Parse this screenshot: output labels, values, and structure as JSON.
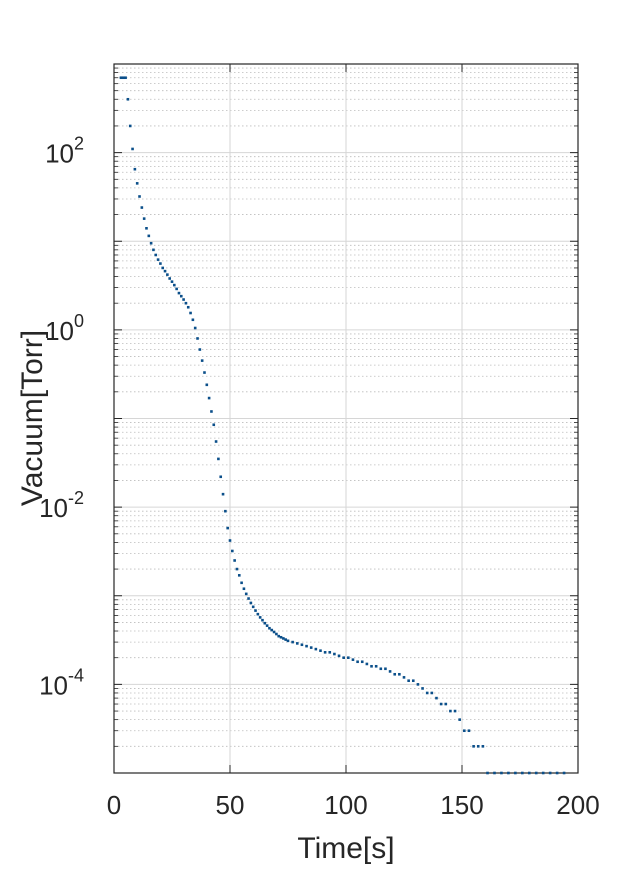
{
  "chart_data": {
    "type": "scatter",
    "xlabel": "Time[s]",
    "ylabel": "Vacuum[Torr]",
    "yscale": "log",
    "xlim": [
      0,
      200
    ],
    "ylim": [
      1e-05,
      1000
    ],
    "grid": true,
    "minor_grid": true,
    "x_ticks": [
      {
        "value": 0,
        "label": "0"
      },
      {
        "value": 50,
        "label": "50"
      },
      {
        "value": 100,
        "label": "100"
      },
      {
        "value": 150,
        "label": "150"
      },
      {
        "value": 200,
        "label": "200"
      }
    ],
    "y_ticks": [
      {
        "value": 100,
        "base": "10",
        "exp": "2"
      },
      {
        "value": 1,
        "base": "10",
        "exp": "0"
      },
      {
        "value": 0.01,
        "base": "10",
        "exp": "-2"
      },
      {
        "value": 0.0001,
        "base": "10",
        "exp": "-4"
      }
    ],
    "marker_color": "#0b4f8a",
    "series": [
      {
        "points": [
          [
            3,
            700
          ],
          [
            4,
            700
          ],
          [
            5,
            700
          ],
          [
            6,
            400
          ],
          [
            7,
            200
          ],
          [
            8,
            110
          ],
          [
            9,
            65
          ],
          [
            10,
            45
          ],
          [
            11,
            32
          ],
          [
            12,
            24
          ],
          [
            13,
            18
          ],
          [
            14,
            14
          ],
          [
            15,
            11.5
          ],
          [
            16,
            9.5
          ],
          [
            17,
            8
          ],
          [
            18,
            7
          ],
          [
            19,
            6.2
          ],
          [
            20,
            5.6
          ],
          [
            21,
            5
          ],
          [
            22,
            4.6
          ],
          [
            23,
            4.2
          ],
          [
            24,
            3.8
          ],
          [
            25,
            3.5
          ],
          [
            26,
            3.2
          ],
          [
            27,
            2.9
          ],
          [
            28,
            2.6
          ],
          [
            29,
            2.4
          ],
          [
            30,
            2.2
          ],
          [
            31,
            2
          ],
          [
            32,
            1.8
          ],
          [
            33,
            1.55
          ],
          [
            34,
            1.3
          ],
          [
            35,
            1.05
          ],
          [
            36,
            0.8
          ],
          [
            37,
            0.6
          ],
          [
            38,
            0.45
          ],
          [
            39,
            0.33
          ],
          [
            40,
            0.24
          ],
          [
            41,
            0.17
          ],
          [
            42,
            0.12
          ],
          [
            43,
            0.085
          ],
          [
            44,
            0.055
          ],
          [
            45,
            0.035
          ],
          [
            46,
            0.022
          ],
          [
            47,
            0.014
          ],
          [
            48,
            0.009
          ],
          [
            49,
            0.0058
          ],
          [
            50,
            0.0042
          ],
          [
            51,
            0.0032
          ],
          [
            52,
            0.0025
          ],
          [
            53,
            0.002
          ],
          [
            54,
            0.0017
          ],
          [
            55,
            0.0014
          ],
          [
            56,
            0.0012
          ],
          [
            57,
            0.00105
          ],
          [
            58,
            0.00093
          ],
          [
            59,
            0.00083
          ],
          [
            60,
            0.00075
          ],
          [
            61,
            0.00068
          ],
          [
            62,
            0.00062
          ],
          [
            63,
            0.00057
          ],
          [
            64,
            0.00053
          ],
          [
            65,
            0.00049
          ],
          [
            66,
            0.00046
          ],
          [
            67,
            0.00043
          ],
          [
            68,
            0.00041
          ],
          [
            69,
            0.00039
          ],
          [
            70,
            0.00037
          ],
          [
            71,
            0.00035
          ],
          [
            72,
            0.00034
          ],
          [
            73,
            0.00033
          ],
          [
            74,
            0.00032
          ],
          [
            75,
            0.00031
          ],
          [
            77,
            0.0003
          ],
          [
            79,
            0.00029
          ],
          [
            81,
            0.00028
          ],
          [
            83,
            0.00027
          ],
          [
            85,
            0.00026
          ],
          [
            87,
            0.00025
          ],
          [
            89,
            0.00024
          ],
          [
            91,
            0.00023
          ],
          [
            93,
            0.00023
          ],
          [
            95,
            0.00022
          ],
          [
            97,
            0.00021
          ],
          [
            99,
            0.0002
          ],
          [
            101,
            0.0002
          ],
          [
            103,
            0.00019
          ],
          [
            105,
            0.00018
          ],
          [
            107,
            0.00018
          ],
          [
            109,
            0.00017
          ],
          [
            111,
            0.00016
          ],
          [
            113,
            0.00016
          ],
          [
            115,
            0.00015
          ],
          [
            117,
            0.00015
          ],
          [
            119,
            0.00014
          ],
          [
            121,
            0.00013
          ],
          [
            123,
            0.00013
          ],
          [
            125,
            0.00012
          ],
          [
            127,
            0.00011
          ],
          [
            129,
            0.00011
          ],
          [
            131,
            0.0001
          ],
          [
            133,
            9e-05
          ],
          [
            135,
            8e-05
          ],
          [
            137,
            8e-05
          ],
          [
            139,
            7e-05
          ],
          [
            141,
            6e-05
          ],
          [
            143,
            6e-05
          ],
          [
            145,
            5e-05
          ],
          [
            147,
            5e-05
          ],
          [
            149,
            4e-05
          ],
          [
            151,
            3e-05
          ],
          [
            153,
            3e-05
          ],
          [
            155,
            2e-05
          ],
          [
            157,
            2e-05
          ],
          [
            159,
            2e-05
          ],
          [
            161,
            1e-05
          ],
          [
            164,
            1e-05
          ],
          [
            167,
            1e-05
          ],
          [
            170,
            1e-05
          ],
          [
            173,
            1e-05
          ],
          [
            176,
            1e-05
          ],
          [
            179,
            1e-05
          ],
          [
            182,
            1e-05
          ],
          [
            185,
            1e-05
          ],
          [
            188,
            1e-05
          ],
          [
            191,
            1e-05
          ],
          [
            194,
            1e-05
          ]
        ]
      }
    ]
  }
}
